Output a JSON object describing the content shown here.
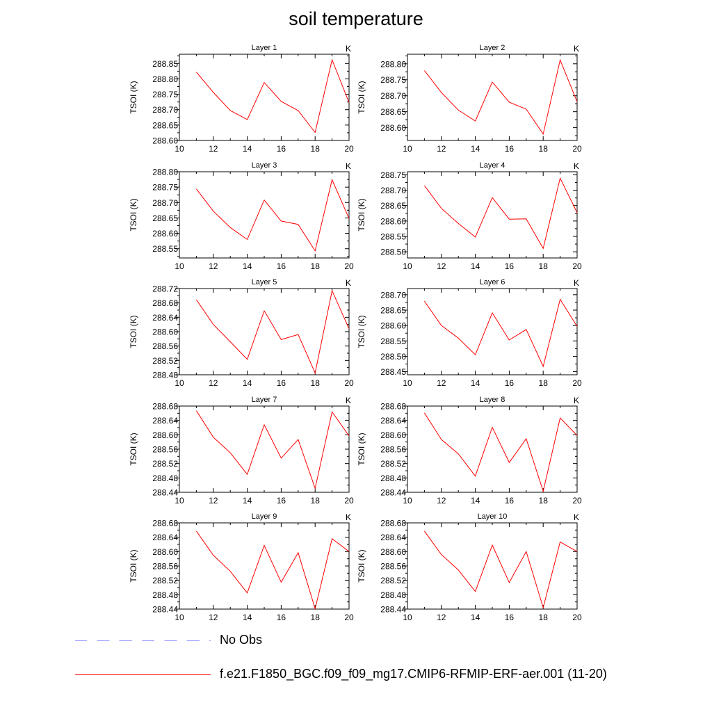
{
  "title": "soil temperature",
  "colors": {
    "model_line": "#ff0000",
    "obs_line": "#9999ff",
    "axis": "#000000"
  },
  "legend": [
    {
      "label": "No Obs",
      "style": "dashed",
      "color": "#9999ff"
    },
    {
      "label": "f.e21.F1850_BGC.f09_f09_mg17.CMIP6-RFMIP-ERF-aer.001 (11-20)",
      "style": "solid",
      "color": "#ff0000"
    }
  ],
  "chart_data": [
    {
      "type": "line",
      "title": "Layer 1",
      "corner_label": "K",
      "ylabel": "TSOI  (K)",
      "xlim": [
        10,
        20
      ],
      "xticks": [
        10,
        12,
        14,
        16,
        18,
        20
      ],
      "ylim": [
        288.6,
        288.88
      ],
      "yticks": [
        288.6,
        288.65,
        288.7,
        288.75,
        288.8,
        288.85
      ],
      "ytick_decimals": 2,
      "x": [
        11,
        12,
        13,
        14,
        15,
        16,
        17,
        18,
        19,
        20
      ],
      "series": [
        {
          "values": [
            288.822,
            288.756,
            288.697,
            288.668,
            288.788,
            288.727,
            288.697,
            288.626,
            288.862,
            288.723
          ]
        }
      ]
    },
    {
      "type": "line",
      "title": "Layer 2",
      "corner_label": "K",
      "ylabel": "TSOI  (K)",
      "xlim": [
        10,
        20
      ],
      "xticks": [
        10,
        12,
        14,
        16,
        18,
        20
      ],
      "ylim": [
        288.56,
        288.83
      ],
      "yticks": [
        288.6,
        288.65,
        288.7,
        288.75,
        288.8
      ],
      "ytick_decimals": 2,
      "x": [
        11,
        12,
        13,
        14,
        15,
        16,
        17,
        18,
        19,
        20
      ],
      "series": [
        {
          "values": [
            288.779,
            288.71,
            288.655,
            288.621,
            288.743,
            288.68,
            288.658,
            288.58,
            288.812,
            288.681
          ]
        }
      ]
    },
    {
      "type": "line",
      "title": "Layer 3",
      "corner_label": "K",
      "ylabel": "TSOI  (K)",
      "xlim": [
        10,
        20
      ],
      "xticks": [
        10,
        12,
        14,
        16,
        18,
        20
      ],
      "ylim": [
        288.52,
        288.8
      ],
      "yticks": [
        288.55,
        288.6,
        288.65,
        288.7,
        288.75,
        288.8
      ],
      "ytick_decimals": 2,
      "x": [
        11,
        12,
        13,
        14,
        15,
        16,
        17,
        18,
        19,
        20
      ],
      "series": [
        {
          "values": [
            288.744,
            288.672,
            288.619,
            288.58,
            288.708,
            288.64,
            288.629,
            288.543,
            288.774,
            288.648
          ]
        }
      ]
    },
    {
      "type": "line",
      "title": "Layer 4",
      "corner_label": "K",
      "ylabel": "TSOI  (K)",
      "xlim": [
        10,
        20
      ],
      "xticks": [
        10,
        12,
        14,
        16,
        18,
        20
      ],
      "ylim": [
        288.48,
        288.76
      ],
      "yticks": [
        288.5,
        288.55,
        288.6,
        288.65,
        288.7,
        288.75
      ],
      "ytick_decimals": 2,
      "x": [
        11,
        12,
        13,
        14,
        15,
        16,
        17,
        18,
        19,
        20
      ],
      "series": [
        {
          "values": [
            288.715,
            288.641,
            288.592,
            288.548,
            288.676,
            288.606,
            288.607,
            288.511,
            288.739,
            288.627
          ]
        }
      ]
    },
    {
      "type": "line",
      "title": "Layer 5",
      "corner_label": "K",
      "ylabel": "TSOI  (K)",
      "xlim": [
        10,
        20
      ],
      "xticks": [
        10,
        12,
        14,
        16,
        18,
        20
      ],
      "ylim": [
        288.48,
        288.72
      ],
      "yticks": [
        288.48,
        288.52,
        288.56,
        288.6,
        288.64,
        288.68,
        288.72
      ],
      "ytick_decimals": 2,
      "x": [
        11,
        12,
        13,
        14,
        15,
        16,
        17,
        18,
        19,
        20
      ],
      "series": [
        {
          "values": [
            288.689,
            288.62,
            288.572,
            288.523,
            288.658,
            288.578,
            288.592,
            288.485,
            288.714,
            288.608
          ]
        }
      ]
    },
    {
      "type": "line",
      "title": "Layer 6",
      "corner_label": "K",
      "ylabel": "TSOI  (K)",
      "xlim": [
        10,
        20
      ],
      "xticks": [
        10,
        12,
        14,
        16,
        18,
        20
      ],
      "ylim": [
        288.44,
        288.72
      ],
      "yticks": [
        288.45,
        288.5,
        288.55,
        288.6,
        288.65,
        288.7
      ],
      "ytick_decimals": 2,
      "x": [
        11,
        12,
        13,
        14,
        15,
        16,
        17,
        18,
        19,
        20
      ],
      "series": [
        {
          "values": [
            288.679,
            288.6,
            288.559,
            288.505,
            288.641,
            288.553,
            288.587,
            288.467,
            288.685,
            288.597
          ]
        }
      ]
    },
    {
      "type": "line",
      "title": "Layer 7",
      "corner_label": "K",
      "ylabel": "TSOI  (K)",
      "xlim": [
        10,
        20
      ],
      "xticks": [
        10,
        12,
        14,
        16,
        18,
        20
      ],
      "ylim": [
        288.44,
        288.68
      ],
      "yticks": [
        288.44,
        288.48,
        288.52,
        288.56,
        288.6,
        288.64,
        288.68
      ],
      "ytick_decimals": 2,
      "x": [
        11,
        12,
        13,
        14,
        15,
        16,
        17,
        18,
        19,
        20
      ],
      "series": [
        {
          "values": [
            288.667,
            288.593,
            288.55,
            288.49,
            288.628,
            288.535,
            288.587,
            288.451,
            288.664,
            288.597
          ]
        }
      ]
    },
    {
      "type": "line",
      "title": "Layer 8",
      "corner_label": "K",
      "ylabel": "TSOI  (K)",
      "xlim": [
        10,
        20
      ],
      "xticks": [
        10,
        12,
        14,
        16,
        18,
        20
      ],
      "ylim": [
        288.44,
        288.68
      ],
      "yticks": [
        288.44,
        288.48,
        288.52,
        288.56,
        288.6,
        288.64,
        288.68
      ],
      "ytick_decimals": 2,
      "x": [
        11,
        12,
        13,
        14,
        15,
        16,
        17,
        18,
        19,
        20
      ],
      "series": [
        {
          "values": [
            288.661,
            288.587,
            288.547,
            288.485,
            288.621,
            288.523,
            288.589,
            288.443,
            288.647,
            288.598
          ]
        }
      ]
    },
    {
      "type": "line",
      "title": "Layer 9",
      "corner_label": "K",
      "ylabel": "TSOI  (K)",
      "xlim": [
        10,
        20
      ],
      "xticks": [
        10,
        12,
        14,
        16,
        18,
        20
      ],
      "ylim": [
        288.44,
        288.68
      ],
      "yticks": [
        288.44,
        288.48,
        288.52,
        288.56,
        288.6,
        288.64,
        288.68
      ],
      "ytick_decimals": 2,
      "x": [
        11,
        12,
        13,
        14,
        15,
        16,
        17,
        18,
        19,
        20
      ],
      "series": [
        {
          "values": [
            288.657,
            288.59,
            288.545,
            288.485,
            288.617,
            288.515,
            288.597,
            288.441,
            288.636,
            288.6
          ]
        }
      ]
    },
    {
      "type": "line",
      "title": "Layer 10",
      "corner_label": "K",
      "ylabel": "TSOI  (K)",
      "xlim": [
        10,
        20
      ],
      "xticks": [
        10,
        12,
        14,
        16,
        18,
        20
      ],
      "ylim": [
        288.44,
        288.68
      ],
      "yticks": [
        288.44,
        288.48,
        288.52,
        288.56,
        288.6,
        288.64,
        288.68
      ],
      "ytick_decimals": 2,
      "x": [
        11,
        12,
        13,
        14,
        15,
        16,
        17,
        18,
        19,
        20
      ],
      "series": [
        {
          "values": [
            288.657,
            288.592,
            288.549,
            288.489,
            288.618,
            288.514,
            288.6,
            288.444,
            288.627,
            288.6
          ]
        }
      ]
    }
  ]
}
